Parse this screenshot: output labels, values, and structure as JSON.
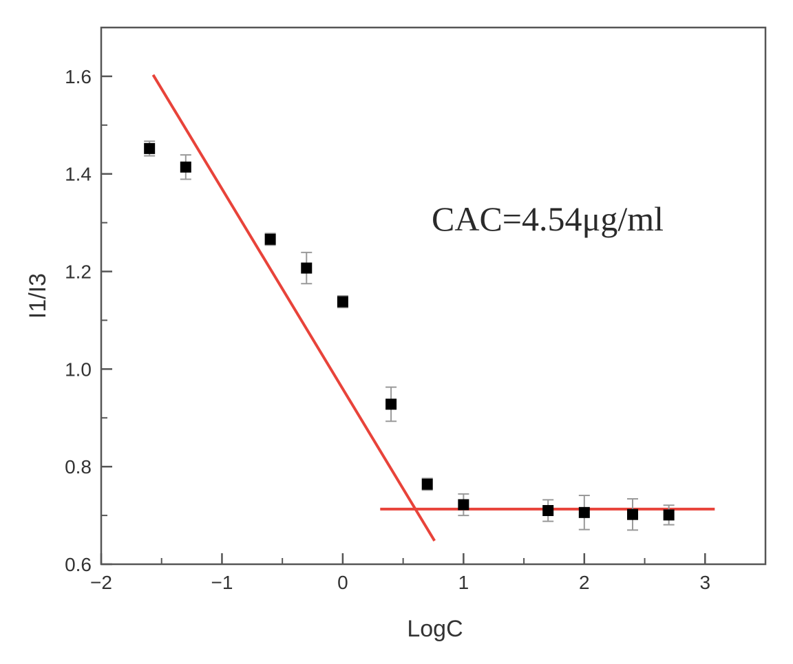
{
  "chart_data": {
    "type": "scatter",
    "xlabel": "LogC",
    "ylabel": "I1/I3",
    "xlim": [
      -2,
      3.5
    ],
    "ylim": [
      0.6,
      1.7
    ],
    "xticks": [
      -2,
      -1,
      0,
      1,
      2,
      3
    ],
    "xtick_labels": [
      "−2",
      "−1",
      "0",
      "1",
      "2",
      "3"
    ],
    "yticks": [
      0.6,
      0.8,
      1.0,
      1.2,
      1.4,
      1.6
    ],
    "ytick_labels": [
      "0.6",
      "0.8",
      "1.0",
      "1.2",
      "1.4",
      "1.6"
    ],
    "grid": false,
    "annotation": "CAC=4.54μg/ml",
    "series": [
      {
        "points": [
          {
            "x": -1.6,
            "y": 1.452,
            "err": 0.015
          },
          {
            "x": -1.3,
            "y": 1.414,
            "err": 0.025
          },
          {
            "x": -0.6,
            "y": 1.266,
            "err": 0.012
          },
          {
            "x": -0.3,
            "y": 1.207,
            "err": 0.032
          },
          {
            "x": 0.0,
            "y": 1.138,
            "err": 0.012
          },
          {
            "x": 0.4,
            "y": 0.928,
            "err": 0.035
          },
          {
            "x": 0.7,
            "y": 0.764,
            "err": 0.012
          },
          {
            "x": 1.0,
            "y": 0.722,
            "err": 0.022
          },
          {
            "x": 1.7,
            "y": 0.71,
            "err": 0.022
          },
          {
            "x": 2.0,
            "y": 0.706,
            "err": 0.035
          },
          {
            "x": 2.4,
            "y": 0.702,
            "err": 0.032
          },
          {
            "x": 2.7,
            "y": 0.701,
            "err": 0.02
          }
        ],
        "color": "#000000",
        "marker": "square"
      }
    ],
    "fit_lines": [
      {
        "x": [
          -1.57,
          0.76
        ],
        "y": [
          1.603,
          0.648
        ],
        "color": "#e8433a"
      },
      {
        "x": [
          0.31,
          3.08
        ],
        "y": [
          0.713,
          0.713
        ],
        "color": "#e8433a"
      }
    ]
  }
}
